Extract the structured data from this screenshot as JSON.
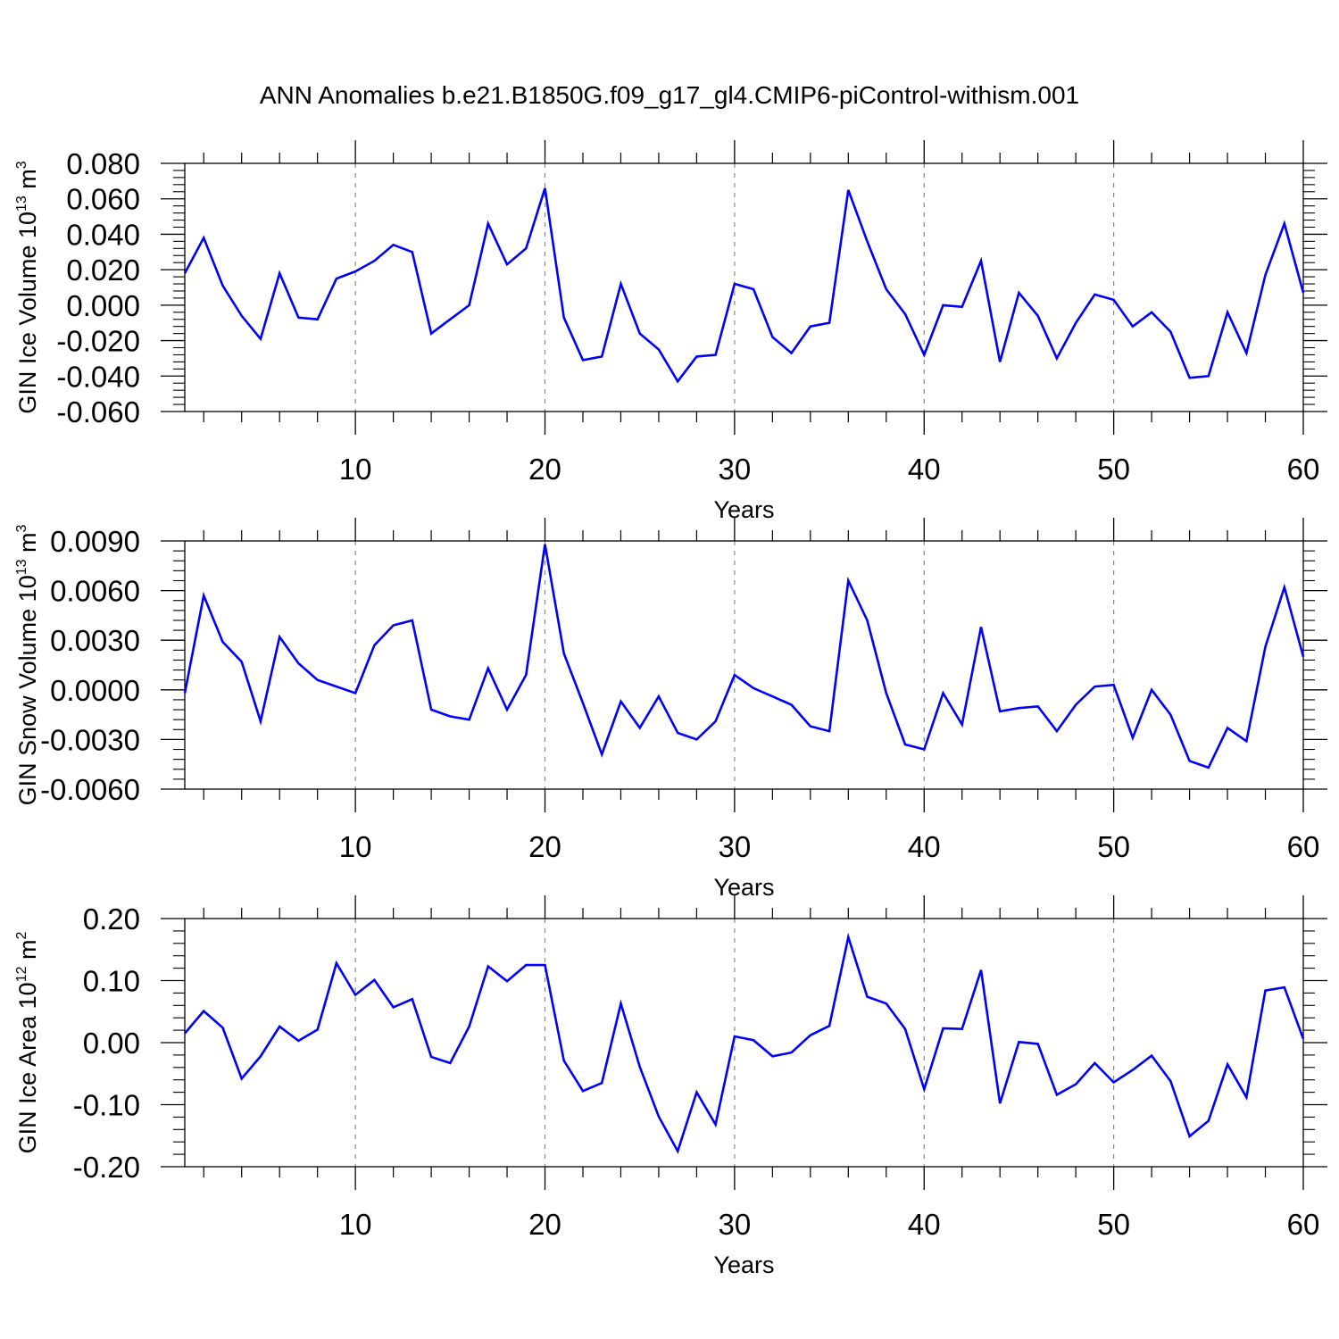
{
  "title": "ANN Anomalies b.e21.B1850G.f09_g17_gl4.CMIP6-piControl-withism.001",
  "colors": {
    "line": "#0000ff",
    "axis": "#000000",
    "grid": "#888888"
  },
  "chart_data": [
    {
      "type": "line",
      "ylabel": "GIN Ice Volume 10",
      "ylabel_exp": "13",
      "ylabel_unit": " m",
      "ylabel_unit_exp": "3",
      "xlabel": "Years",
      "xlim": [
        1,
        60
      ],
      "ylim": [
        -0.06,
        0.08
      ],
      "xticks": [
        10,
        20,
        30,
        40,
        50,
        60
      ],
      "yticks": [
        -0.06,
        -0.04,
        -0.02,
        0.0,
        0.02,
        0.04,
        0.06,
        0.08
      ],
      "ytick_labels": [
        "-0.060",
        "-0.040",
        "-0.020",
        "0.000",
        "0.020",
        "0.040",
        "0.060",
        "0.080"
      ],
      "x": [
        1,
        2,
        3,
        4,
        5,
        6,
        7,
        8,
        9,
        10,
        11,
        12,
        13,
        14,
        15,
        16,
        17,
        18,
        19,
        20,
        21,
        22,
        23,
        24,
        25,
        26,
        27,
        28,
        29,
        30,
        31,
        32,
        33,
        34,
        35,
        36,
        37,
        38,
        39,
        40,
        41,
        42,
        43,
        44,
        45,
        46,
        47,
        48,
        49,
        50,
        51,
        52,
        53,
        54,
        55,
        56,
        57,
        58,
        59,
        60
      ],
      "values": [
        0.018,
        0.038,
        0.011,
        -0.006,
        -0.019,
        0.018,
        -0.007,
        -0.008,
        0.015,
        0.019,
        0.025,
        0.034,
        0.03,
        -0.016,
        -0.008,
        0.0,
        0.046,
        0.023,
        0.032,
        0.066,
        -0.007,
        -0.031,
        -0.029,
        0.012,
        -0.016,
        -0.025,
        -0.043,
        -0.029,
        -0.028,
        0.012,
        0.009,
        -0.018,
        -0.027,
        -0.012,
        -0.01,
        0.065,
        0.036,
        0.009,
        -0.005,
        -0.028,
        0.0,
        -0.001,
        0.025,
        -0.032,
        0.007,
        -0.006,
        -0.03,
        -0.01,
        0.006,
        0.003,
        -0.012,
        -0.004,
        -0.015,
        -0.041,
        -0.04,
        -0.004,
        -0.027,
        0.017,
        0.046,
        0.007
      ]
    },
    {
      "type": "line",
      "ylabel": "GIN Snow Volume 10",
      "ylabel_exp": "13",
      "ylabel_unit": " m",
      "ylabel_unit_exp": "3",
      "xlabel": "Years",
      "xlim": [
        1,
        60
      ],
      "ylim": [
        -0.006,
        0.009
      ],
      "xticks": [
        10,
        20,
        30,
        40,
        50,
        60
      ],
      "yticks": [
        -0.006,
        -0.003,
        0.0,
        0.003,
        0.006,
        0.009
      ],
      "ytick_labels": [
        "-0.0060",
        "-0.0030",
        "0.0000",
        "0.0030",
        "0.0060",
        "0.0090"
      ],
      "x": [
        1,
        2,
        3,
        4,
        5,
        6,
        7,
        8,
        9,
        10,
        11,
        12,
        13,
        14,
        15,
        16,
        17,
        18,
        19,
        20,
        21,
        22,
        23,
        24,
        25,
        26,
        27,
        28,
        29,
        30,
        31,
        32,
        33,
        34,
        35,
        36,
        37,
        38,
        39,
        40,
        41,
        42,
        43,
        44,
        45,
        46,
        47,
        48,
        49,
        50,
        51,
        52,
        53,
        54,
        55,
        56,
        57,
        58,
        59,
        60
      ],
      "values": [
        -0.0002,
        0.0057,
        0.0029,
        0.0017,
        -0.0019,
        0.0032,
        0.0016,
        0.0006,
        0.0002,
        -0.0002,
        0.0027,
        0.0039,
        0.0042,
        -0.0012,
        -0.0016,
        -0.0018,
        0.0013,
        -0.0012,
        0.0009,
        0.0088,
        0.0022,
        -0.0008,
        -0.0039,
        -0.0007,
        -0.0023,
        -0.0004,
        -0.0026,
        -0.003,
        -0.0019,
        0.0009,
        0.0001,
        -0.0004,
        -0.0009,
        -0.0022,
        -0.0025,
        0.0066,
        0.0042,
        -0.0002,
        -0.0033,
        -0.0036,
        -0.0002,
        -0.0021,
        0.0038,
        -0.0013,
        -0.0011,
        -0.001,
        -0.0025,
        -0.0009,
        0.0002,
        0.0003,
        -0.0029,
        0.0,
        -0.0015,
        -0.0043,
        -0.0047,
        -0.0023,
        -0.0031,
        0.0026,
        0.0062,
        0.002
      ]
    },
    {
      "type": "line",
      "ylabel": "GIN Ice Area 10",
      "ylabel_exp": "12",
      "ylabel_unit": " m",
      "ylabel_unit_exp": "2",
      "xlabel": "Years",
      "xlim": [
        1,
        60
      ],
      "ylim": [
        -0.2,
        0.2
      ],
      "xticks": [
        10,
        20,
        30,
        40,
        50,
        60
      ],
      "yticks": [
        -0.2,
        -0.1,
        0.0,
        0.1,
        0.2
      ],
      "ytick_labels": [
        "-0.20",
        "-0.10",
        "0.00",
        "0.10",
        "0.20"
      ],
      "x": [
        1,
        2,
        3,
        4,
        5,
        6,
        7,
        8,
        9,
        10,
        11,
        12,
        13,
        14,
        15,
        16,
        17,
        18,
        19,
        20,
        21,
        22,
        23,
        24,
        25,
        26,
        27,
        28,
        29,
        30,
        31,
        32,
        33,
        34,
        35,
        36,
        37,
        38,
        39,
        40,
        41,
        42,
        43,
        44,
        45,
        46,
        47,
        48,
        49,
        50,
        51,
        52,
        53,
        54,
        55,
        56,
        57,
        58,
        59,
        60
      ],
      "values": [
        0.015,
        0.051,
        0.024,
        -0.058,
        -0.022,
        0.026,
        0.003,
        0.021,
        0.128,
        0.077,
        0.101,
        0.057,
        0.07,
        -0.023,
        -0.033,
        0.026,
        0.123,
        0.099,
        0.125,
        0.125,
        -0.029,
        -0.078,
        -0.065,
        0.063,
        -0.039,
        -0.119,
        -0.175,
        -0.08,
        -0.132,
        0.01,
        0.004,
        -0.022,
        -0.016,
        0.012,
        0.027,
        0.17,
        0.074,
        0.063,
        0.022,
        -0.075,
        0.023,
        0.022,
        0.117,
        -0.098,
        0.001,
        -0.002,
        -0.084,
        -0.067,
        -0.033,
        -0.064,
        -0.044,
        -0.021,
        -0.062,
        -0.151,
        -0.126,
        -0.035,
        -0.088,
        0.084,
        0.089,
        0.006
      ]
    }
  ]
}
